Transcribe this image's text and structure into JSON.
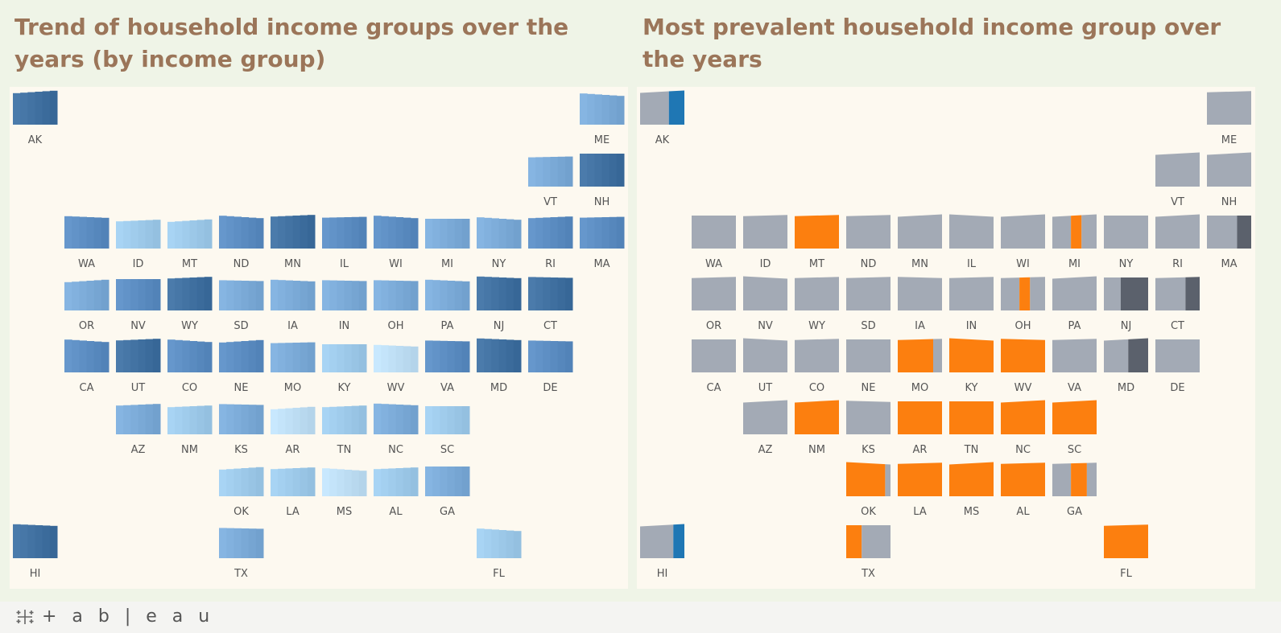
{
  "dashboard": {
    "left_title": "Trend of household income groups over the years (by income group)",
    "right_title": "Most prevalent household income group over the years"
  },
  "footer": {
    "brand": "+ a b | e a u",
    "brand_icon": "tableau-logo-icon"
  },
  "colors": {
    "blue_scale": [
      "#bcdcf2",
      "#9cc8e8",
      "#7aa9d6",
      "#5a8bc0",
      "#3f6f9f"
    ],
    "gray": "#a3aab5",
    "orange": "#fc7f0f",
    "dark_gray": "#5b616c",
    "tableau_blue": "#1f77b4"
  },
  "chart_data": [
    {
      "type": "tile-grid-area",
      "title": "Trend of household income groups over the years (by income group)",
      "intensity_scale": [
        0,
        4
      ],
      "states": [
        {
          "abbr": "AK",
          "row": 0,
          "col": 0,
          "level": 4
        },
        {
          "abbr": "ME",
          "row": 0,
          "col": 11,
          "level": 2
        },
        {
          "abbr": "VT",
          "row": 1,
          "col": 10,
          "level": 2
        },
        {
          "abbr": "NH",
          "row": 1,
          "col": 11,
          "level": 4
        },
        {
          "abbr": "WA",
          "row": 2,
          "col": 1,
          "level": 3
        },
        {
          "abbr": "ID",
          "row": 2,
          "col": 2,
          "level": 1
        },
        {
          "abbr": "MT",
          "row": 2,
          "col": 3,
          "level": 1
        },
        {
          "abbr": "ND",
          "row": 2,
          "col": 4,
          "level": 3
        },
        {
          "abbr": "MN",
          "row": 2,
          "col": 5,
          "level": 4
        },
        {
          "abbr": "IL",
          "row": 2,
          "col": 6,
          "level": 3
        },
        {
          "abbr": "WI",
          "row": 2,
          "col": 7,
          "level": 3
        },
        {
          "abbr": "MI",
          "row": 2,
          "col": 8,
          "level": 2
        },
        {
          "abbr": "NY",
          "row": 2,
          "col": 9,
          "level": 2
        },
        {
          "abbr": "RI",
          "row": 2,
          "col": 10,
          "level": 3
        },
        {
          "abbr": "MA",
          "row": 2,
          "col": 11,
          "level": 3
        },
        {
          "abbr": "OR",
          "row": 3,
          "col": 1,
          "level": 2
        },
        {
          "abbr": "NV",
          "row": 3,
          "col": 2,
          "level": 3
        },
        {
          "abbr": "WY",
          "row": 3,
          "col": 3,
          "level": 4
        },
        {
          "abbr": "SD",
          "row": 3,
          "col": 4,
          "level": 2
        },
        {
          "abbr": "IA",
          "row": 3,
          "col": 5,
          "level": 2
        },
        {
          "abbr": "IN",
          "row": 3,
          "col": 6,
          "level": 2
        },
        {
          "abbr": "OH",
          "row": 3,
          "col": 7,
          "level": 2
        },
        {
          "abbr": "PA",
          "row": 3,
          "col": 8,
          "level": 2
        },
        {
          "abbr": "NJ",
          "row": 3,
          "col": 9,
          "level": 4
        },
        {
          "abbr": "CT",
          "row": 3,
          "col": 10,
          "level": 4
        },
        {
          "abbr": "CA",
          "row": 4,
          "col": 1,
          "level": 3
        },
        {
          "abbr": "UT",
          "row": 4,
          "col": 2,
          "level": 4
        },
        {
          "abbr": "CO",
          "row": 4,
          "col": 3,
          "level": 3
        },
        {
          "abbr": "NE",
          "row": 4,
          "col": 4,
          "level": 3
        },
        {
          "abbr": "MO",
          "row": 4,
          "col": 5,
          "level": 2
        },
        {
          "abbr": "KY",
          "row": 4,
          "col": 6,
          "level": 1
        },
        {
          "abbr": "WV",
          "row": 4,
          "col": 7,
          "level": 0
        },
        {
          "abbr": "VA",
          "row": 4,
          "col": 8,
          "level": 3
        },
        {
          "abbr": "MD",
          "row": 4,
          "col": 9,
          "level": 4
        },
        {
          "abbr": "DE",
          "row": 4,
          "col": 10,
          "level": 3
        },
        {
          "abbr": "AZ",
          "row": 5,
          "col": 2,
          "level": 2
        },
        {
          "abbr": "NM",
          "row": 5,
          "col": 3,
          "level": 1
        },
        {
          "abbr": "KS",
          "row": 5,
          "col": 4,
          "level": 2
        },
        {
          "abbr": "AR",
          "row": 5,
          "col": 5,
          "level": 0
        },
        {
          "abbr": "TN",
          "row": 5,
          "col": 6,
          "level": 1
        },
        {
          "abbr": "NC",
          "row": 5,
          "col": 7,
          "level": 2
        },
        {
          "abbr": "SC",
          "row": 5,
          "col": 8,
          "level": 1
        },
        {
          "abbr": "OK",
          "row": 6,
          "col": 4,
          "level": 1
        },
        {
          "abbr": "LA",
          "row": 6,
          "col": 5,
          "level": 1
        },
        {
          "abbr": "MS",
          "row": 6,
          "col": 6,
          "level": 0
        },
        {
          "abbr": "AL",
          "row": 6,
          "col": 7,
          "level": 1
        },
        {
          "abbr": "GA",
          "row": 6,
          "col": 8,
          "level": 2
        },
        {
          "abbr": "HI",
          "row": 7,
          "col": 0,
          "level": 4
        },
        {
          "abbr": "TX",
          "row": 7,
          "col": 4,
          "level": 2
        },
        {
          "abbr": "FL",
          "row": 7,
          "col": 9,
          "level": 1
        }
      ]
    },
    {
      "type": "tile-grid-area",
      "title": "Most prevalent household income group over the years",
      "states": [
        {
          "abbr": "AK",
          "row": 0,
          "col": 0,
          "segments": [
            [
              "gray",
              0.65
            ],
            [
              "tableau_blue",
              0.35
            ]
          ]
        },
        {
          "abbr": "ME",
          "row": 0,
          "col": 11,
          "segments": [
            [
              "gray",
              1
            ]
          ]
        },
        {
          "abbr": "VT",
          "row": 1,
          "col": 10,
          "segments": [
            [
              "gray",
              1
            ]
          ]
        },
        {
          "abbr": "NH",
          "row": 1,
          "col": 11,
          "segments": [
            [
              "gray",
              1
            ]
          ]
        },
        {
          "abbr": "WA",
          "row": 2,
          "col": 1,
          "segments": [
            [
              "gray",
              1
            ]
          ]
        },
        {
          "abbr": "ID",
          "row": 2,
          "col": 2,
          "segments": [
            [
              "gray",
              1
            ]
          ]
        },
        {
          "abbr": "MT",
          "row": 2,
          "col": 3,
          "segments": [
            [
              "orange",
              1
            ]
          ]
        },
        {
          "abbr": "ND",
          "row": 2,
          "col": 4,
          "segments": [
            [
              "gray",
              1
            ]
          ]
        },
        {
          "abbr": "MN",
          "row": 2,
          "col": 5,
          "segments": [
            [
              "gray",
              1
            ]
          ]
        },
        {
          "abbr": "IL",
          "row": 2,
          "col": 6,
          "segments": [
            [
              "gray",
              1
            ]
          ]
        },
        {
          "abbr": "WI",
          "row": 2,
          "col": 7,
          "segments": [
            [
              "gray",
              1
            ]
          ]
        },
        {
          "abbr": "MI",
          "row": 2,
          "col": 8,
          "segments": [
            [
              "gray",
              0.42
            ],
            [
              "orange",
              0.24
            ],
            [
              "gray",
              0.34
            ]
          ]
        },
        {
          "abbr": "NY",
          "row": 2,
          "col": 9,
          "segments": [
            [
              "gray",
              1
            ]
          ]
        },
        {
          "abbr": "RI",
          "row": 2,
          "col": 10,
          "segments": [
            [
              "gray",
              1
            ]
          ]
        },
        {
          "abbr": "MA",
          "row": 2,
          "col": 11,
          "segments": [
            [
              "gray",
              0.68
            ],
            [
              "dark_gray",
              0.32
            ]
          ]
        },
        {
          "abbr": "OR",
          "row": 3,
          "col": 1,
          "segments": [
            [
              "gray",
              1
            ]
          ]
        },
        {
          "abbr": "NV",
          "row": 3,
          "col": 2,
          "segments": [
            [
              "gray",
              1
            ]
          ]
        },
        {
          "abbr": "WY",
          "row": 3,
          "col": 3,
          "segments": [
            [
              "gray",
              1
            ]
          ]
        },
        {
          "abbr": "SD",
          "row": 3,
          "col": 4,
          "segments": [
            [
              "gray",
              1
            ]
          ]
        },
        {
          "abbr": "IA",
          "row": 3,
          "col": 5,
          "segments": [
            [
              "gray",
              1
            ]
          ]
        },
        {
          "abbr": "IN",
          "row": 3,
          "col": 6,
          "segments": [
            [
              "gray",
              1
            ]
          ]
        },
        {
          "abbr": "OH",
          "row": 3,
          "col": 7,
          "segments": [
            [
              "gray",
              0.42
            ],
            [
              "orange",
              0.24
            ],
            [
              "gray",
              0.34
            ]
          ]
        },
        {
          "abbr": "PA",
          "row": 3,
          "col": 8,
          "segments": [
            [
              "gray",
              1
            ]
          ]
        },
        {
          "abbr": "NJ",
          "row": 3,
          "col": 9,
          "segments": [
            [
              "gray",
              0.38
            ],
            [
              "dark_gray",
              0.62
            ]
          ]
        },
        {
          "abbr": "CT",
          "row": 3,
          "col": 10,
          "segments": [
            [
              "gray",
              0.68
            ],
            [
              "dark_gray",
              0.32
            ]
          ]
        },
        {
          "abbr": "CA",
          "row": 4,
          "col": 1,
          "segments": [
            [
              "gray",
              1
            ]
          ]
        },
        {
          "abbr": "UT",
          "row": 4,
          "col": 2,
          "segments": [
            [
              "gray",
              1
            ]
          ]
        },
        {
          "abbr": "CO",
          "row": 4,
          "col": 3,
          "segments": [
            [
              "gray",
              1
            ]
          ]
        },
        {
          "abbr": "NE",
          "row": 4,
          "col": 4,
          "segments": [
            [
              "gray",
              1
            ]
          ]
        },
        {
          "abbr": "MO",
          "row": 4,
          "col": 5,
          "segments": [
            [
              "orange",
              0.8
            ],
            [
              "gray",
              0.2
            ]
          ]
        },
        {
          "abbr": "KY",
          "row": 4,
          "col": 6,
          "segments": [
            [
              "orange",
              1
            ]
          ]
        },
        {
          "abbr": "WV",
          "row": 4,
          "col": 7,
          "segments": [
            [
              "orange",
              1
            ]
          ]
        },
        {
          "abbr": "VA",
          "row": 4,
          "col": 8,
          "segments": [
            [
              "gray",
              1
            ]
          ]
        },
        {
          "abbr": "MD",
          "row": 4,
          "col": 9,
          "segments": [
            [
              "gray",
              0.55
            ],
            [
              "dark_gray",
              0.45
            ]
          ]
        },
        {
          "abbr": "DE",
          "row": 4,
          "col": 10,
          "segments": [
            [
              "gray",
              1
            ]
          ]
        },
        {
          "abbr": "AZ",
          "row": 5,
          "col": 2,
          "segments": [
            [
              "gray",
              1
            ]
          ]
        },
        {
          "abbr": "NM",
          "row": 5,
          "col": 3,
          "segments": [
            [
              "orange",
              1
            ]
          ]
        },
        {
          "abbr": "KS",
          "row": 5,
          "col": 4,
          "segments": [
            [
              "gray",
              1
            ]
          ]
        },
        {
          "abbr": "AR",
          "row": 5,
          "col": 5,
          "segments": [
            [
              "orange",
              1
            ]
          ]
        },
        {
          "abbr": "TN",
          "row": 5,
          "col": 6,
          "segments": [
            [
              "orange",
              1
            ]
          ]
        },
        {
          "abbr": "NC",
          "row": 5,
          "col": 7,
          "segments": [
            [
              "orange",
              1
            ]
          ]
        },
        {
          "abbr": "SC",
          "row": 5,
          "col": 8,
          "segments": [
            [
              "orange",
              1
            ]
          ]
        },
        {
          "abbr": "OK",
          "row": 6,
          "col": 4,
          "segments": [
            [
              "orange",
              0.88
            ],
            [
              "gray",
              0.12
            ]
          ]
        },
        {
          "abbr": "LA",
          "row": 6,
          "col": 5,
          "segments": [
            [
              "orange",
              1
            ]
          ]
        },
        {
          "abbr": "MS",
          "row": 6,
          "col": 6,
          "segments": [
            [
              "orange",
              1
            ]
          ]
        },
        {
          "abbr": "AL",
          "row": 6,
          "col": 7,
          "segments": [
            [
              "orange",
              1
            ]
          ]
        },
        {
          "abbr": "GA",
          "row": 6,
          "col": 8,
          "segments": [
            [
              "gray",
              0.42
            ],
            [
              "orange",
              0.36
            ],
            [
              "gray",
              0.22
            ]
          ]
        },
        {
          "abbr": "HI",
          "row": 7,
          "col": 0,
          "segments": [
            [
              "gray",
              0.75
            ],
            [
              "tableau_blue",
              0.25
            ]
          ]
        },
        {
          "abbr": "TX",
          "row": 7,
          "col": 4,
          "segments": [
            [
              "orange",
              0.35
            ],
            [
              "gray",
              0.65
            ]
          ]
        },
        {
          "abbr": "FL",
          "row": 7,
          "col": 9,
          "segments": [
            [
              "orange",
              1
            ]
          ]
        }
      ]
    }
  ]
}
